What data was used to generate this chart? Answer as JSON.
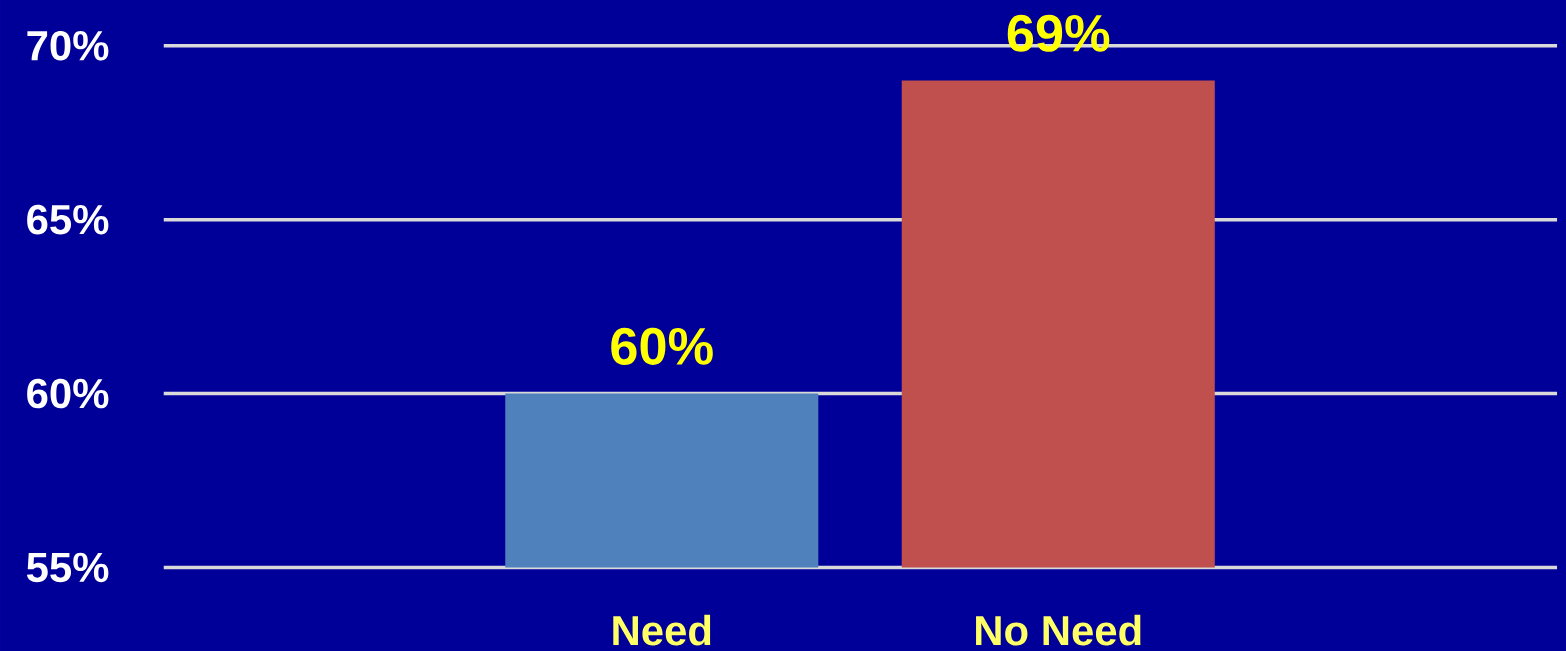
{
  "chart_data": {
    "type": "bar",
    "categories": [
      "Need",
      "No Need"
    ],
    "values": [
      60,
      69
    ],
    "colors": [
      "#4f81bd",
      "#c0504d"
    ],
    "value_labels": [
      "60%",
      "69%"
    ],
    "ylim": [
      55,
      70
    ],
    "yticks": [
      {
        "value": 55,
        "label": "55%"
      },
      {
        "value": 60,
        "label": "60%"
      },
      {
        "value": 65,
        "label": "65%"
      },
      {
        "value": 70,
        "label": "70%"
      }
    ],
    "grid": "y"
  }
}
